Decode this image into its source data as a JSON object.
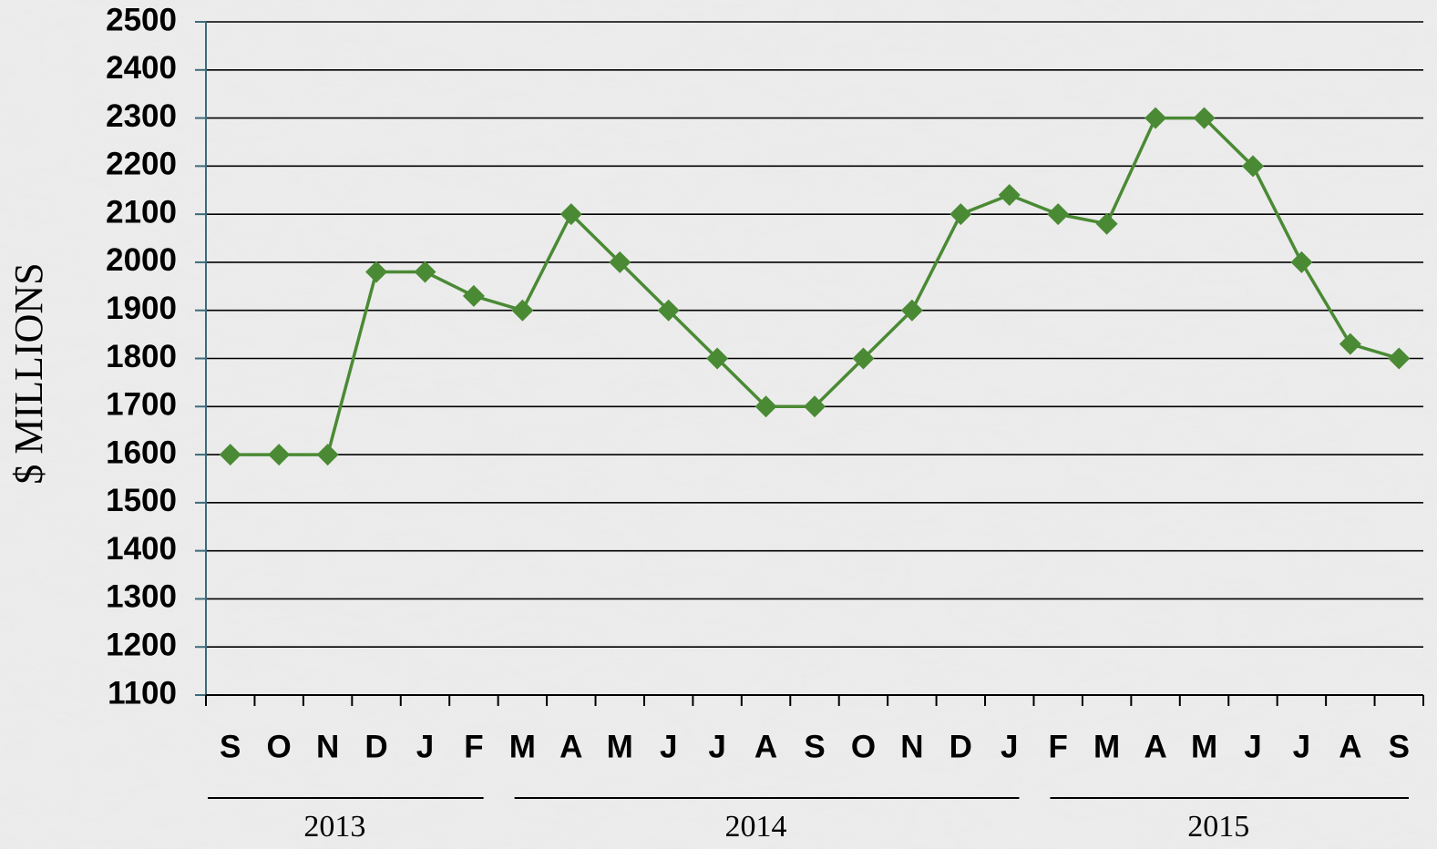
{
  "chart_data": {
    "type": "line",
    "y_label": "$ MILLIONS",
    "category_groups": [
      {
        "label": "2013",
        "categories": [
          "S",
          "O",
          "N",
          "D",
          "J",
          "F"
        ]
      },
      {
        "label": "2014",
        "categories": [
          "M",
          "A",
          "M",
          "J",
          "J",
          "A",
          "S",
          "O",
          "N",
          "D",
          "J"
        ]
      },
      {
        "label": "2015",
        "categories": [
          "F",
          "M",
          "A",
          "M",
          "J",
          "J",
          "A",
          "S"
        ]
      }
    ],
    "series": [
      {
        "color": "#4a8a34",
        "values": [
          1600,
          1600,
          1600,
          1980,
          1980,
          1930,
          1900,
          2100,
          2000,
          1900,
          1800,
          1700,
          1700,
          1800,
          1900,
          2100,
          2140,
          2100,
          2080,
          2300,
          2300,
          2200,
          2000,
          1830,
          1800
        ]
      }
    ],
    "ylim": [
      1100,
      2500
    ],
    "yticks": [
      1100,
      1200,
      1300,
      1400,
      1500,
      1600,
      1700,
      1800,
      1900,
      2000,
      2100,
      2200,
      2300,
      2400,
      2500
    ],
    "grid": true
  }
}
